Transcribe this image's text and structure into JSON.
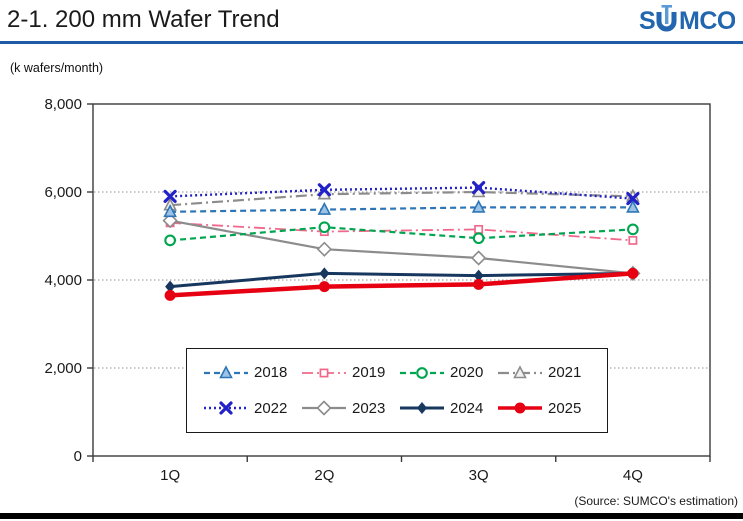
{
  "header": {
    "title": "2-1. 200 mm Wafer Trend",
    "logo_text": "SUMCO",
    "logo_color": "#2166ae",
    "rule_color": "#1f5ca8"
  },
  "chart_data": {
    "type": "line",
    "title": "200 mm Wafer Trend",
    "unit_label": "(k wafers/month)",
    "categories": [
      "1Q",
      "2Q",
      "3Q",
      "4Q"
    ],
    "ylim": [
      0,
      8000
    ],
    "yticks": [
      0,
      2000,
      4000,
      6000,
      8000
    ],
    "ytick_labels": [
      "0",
      "2,000",
      "4,000",
      "6,000",
      "8,000"
    ],
    "grid": "horizontal-dotted",
    "legend_position": "inside-bottom",
    "series": [
      {
        "name": "2018",
        "color": "#2e75b6",
        "line": "dashed",
        "line_width": 2.2,
        "marker": "triangle-open",
        "marker_fill": "#9cc3e5",
        "values": [
          5550,
          5600,
          5650,
          5650
        ]
      },
      {
        "name": "2019",
        "color": "#f0698c",
        "line": "dashdot",
        "line_width": 1.8,
        "marker": "square-open",
        "marker_fill": "#ffffff",
        "values": [
          5300,
          5100,
          5150,
          4900
        ]
      },
      {
        "name": "2020",
        "color": "#00a550",
        "line": "dashed",
        "line_width": 2.2,
        "marker": "circle-open",
        "marker_fill": "#ffffff",
        "values": [
          4900,
          5200,
          4950,
          5150
        ]
      },
      {
        "name": "2021",
        "color": "#8c8c8c",
        "line": "dashdot",
        "line_width": 2.2,
        "marker": "triangle-open",
        "marker_fill": "#f0f0f0",
        "values": [
          5700,
          5950,
          6000,
          5900
        ]
      },
      {
        "name": "2022",
        "color": "#2222c8",
        "line": "dotted",
        "line_width": 2.4,
        "marker": "x",
        "marker_fill": "#2222c8",
        "values": [
          5900,
          6050,
          6100,
          5850
        ]
      },
      {
        "name": "2023",
        "color": "#8c8c8c",
        "line": "solid",
        "line_width": 2.2,
        "marker": "diamond-open",
        "marker_fill": "#ffffff",
        "values": [
          5350,
          4700,
          4500,
          4150
        ]
      },
      {
        "name": "2024",
        "color": "#17375e",
        "line": "solid",
        "line_width": 3.0,
        "marker": "diamond-filled",
        "marker_fill": "#17375e",
        "values": [
          3850,
          4150,
          4100,
          4150
        ]
      },
      {
        "name": "2025",
        "color": "#e60012",
        "line": "solid",
        "line_width": 4.5,
        "marker": "circle-filled",
        "marker_fill": "#e60012",
        "values": [
          3650,
          3850,
          3900,
          4150
        ]
      }
    ],
    "source_note": "(Source: SUMCO's estimation)"
  }
}
